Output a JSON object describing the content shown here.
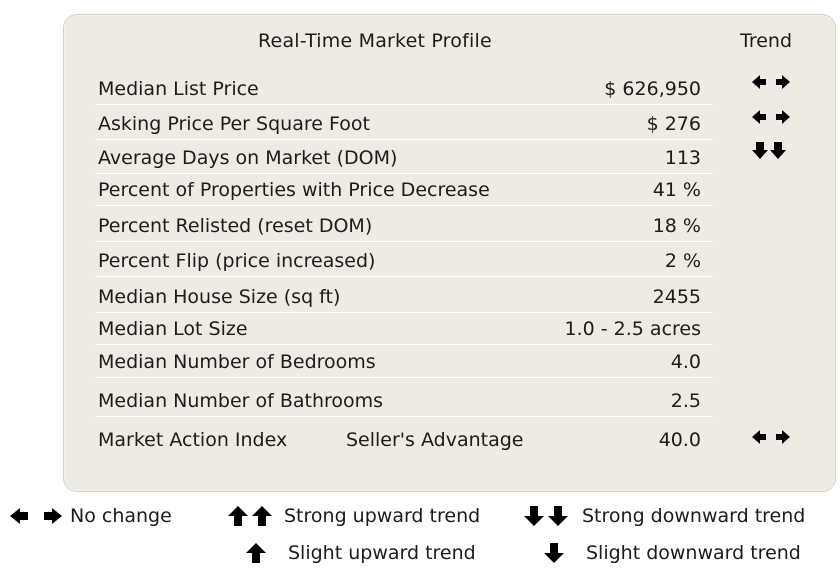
{
  "header": {
    "title": "Real-Time Market Profile",
    "trend_label": "Trend"
  },
  "rows": [
    {
      "label": "Median List Price",
      "value": "$ 626,950",
      "trend": "no-change"
    },
    {
      "label": "Asking Price Per Square Foot",
      "value": "$ 276",
      "trend": "no-change"
    },
    {
      "label": "Average Days on Market (DOM)",
      "value": "113",
      "trend": "strong-downward"
    },
    {
      "label": "Percent of Properties with Price Decrease",
      "value": "41 %",
      "trend": ""
    },
    {
      "label": "Percent Relisted (reset DOM)",
      "value": "18 %",
      "trend": ""
    },
    {
      "label": "Percent Flip (price increased)",
      "value": "2 %",
      "trend": ""
    },
    {
      "label": "Median House Size (sq ft)",
      "value": "2455",
      "trend": ""
    },
    {
      "label": "Median Lot Size",
      "value": "1.0 - 2.5 acres",
      "trend": ""
    },
    {
      "label": "Median Number of Bedrooms",
      "value": "4.0",
      "trend": ""
    },
    {
      "label": "Median Number of Bathrooms",
      "value": "2.5",
      "trend": ""
    },
    {
      "label": "Market Action Index",
      "sublabel": "Seller's Advantage",
      "value": "40.0",
      "trend": "no-change"
    }
  ],
  "legend": {
    "no_change": "No change",
    "strong_up": "Strong upward trend",
    "strong_down": "Strong downward trend",
    "slight_up": "Slight upward trend",
    "slight_down": "Slight downward trend"
  },
  "colors": {
    "panel_bg": "#efebe2",
    "panel_border": "#d6d1c6",
    "text": "#1b1b1b",
    "arrow": "#000000"
  }
}
